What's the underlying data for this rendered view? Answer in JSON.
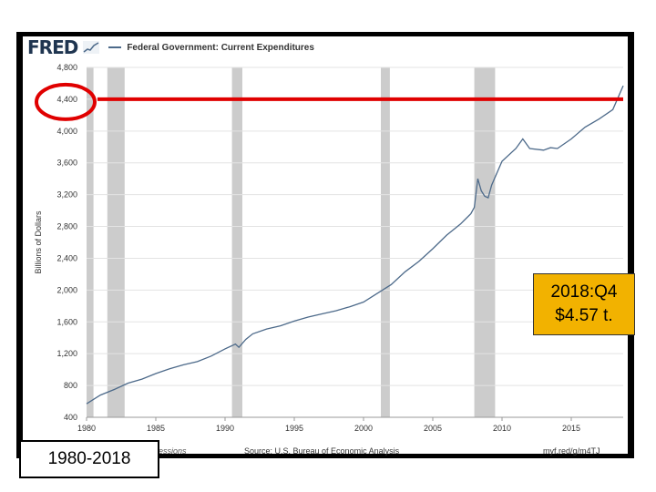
{
  "header": {
    "logo": "FRED",
    "logo_icon": "sparkline-icon",
    "series_title": "Federal Government: Current Expenditures"
  },
  "footer": {
    "recessions_label": "essions",
    "source": "Source: U.S. Bureau of Economic Analysis",
    "url": "myf.red/g/m4TJ"
  },
  "annotations": {
    "callout_line1": "2018:Q4",
    "callout_line2": "$4.57 t.",
    "range_label": "1980-2018",
    "highlight_value": 4400
  },
  "colors": {
    "series": "#4d6a8a",
    "recession": "#cccccc",
    "grid": "#e3e3e3",
    "highlight": "#e00000",
    "callout_bg": "#f2b200"
  },
  "chart_data": {
    "type": "line",
    "title": "Federal Government: Current Expenditures",
    "ylabel": "Billions of Dollars",
    "xlabel": "",
    "xlim": [
      1980,
      2018.75
    ],
    "ylim": [
      400,
      4800
    ],
    "xticks": [
      1980,
      1985,
      1990,
      1995,
      2000,
      2005,
      2010,
      2015
    ],
    "yticks": [
      400,
      800,
      1200,
      1600,
      2000,
      2400,
      2800,
      3200,
      3600,
      4000,
      4400,
      4800
    ],
    "ytick_labels": [
      "400",
      "800",
      "1,200",
      "1,600",
      "2,000",
      "2,400",
      "2,800",
      "3,200",
      "3,600",
      "4,000",
      "4,400",
      "4,800"
    ],
    "grid": true,
    "recessions": [
      [
        1980.0,
        1980.5
      ],
      [
        1981.5,
        1982.75
      ],
      [
        1990.5,
        1991.25
      ],
      [
        2001.25,
        2001.9
      ],
      [
        2008.0,
        2009.5
      ]
    ],
    "series": [
      {
        "x": [
          1980,
          1981,
          1982,
          1983,
          1984,
          1985,
          1986,
          1987,
          1988,
          1989,
          1990,
          1990.75,
          1991,
          1991.5,
          1992,
          1993,
          1994,
          1995,
          1996,
          1997,
          1998,
          1999,
          2000,
          2001,
          2002,
          2003,
          2004,
          2005,
          2006,
          2007,
          2007.75,
          2008,
          2008.25,
          2008.5,
          2008.75,
          2009,
          2009.25,
          2010,
          2011,
          2011.5,
          2012,
          2013,
          2013.5,
          2014,
          2015,
          2016,
          2017,
          2018,
          2018.75
        ],
        "values": [
          570,
          680,
          750,
          830,
          880,
          950,
          1010,
          1060,
          1100,
          1170,
          1260,
          1320,
          1280,
          1380,
          1450,
          1510,
          1550,
          1610,
          1660,
          1700,
          1740,
          1790,
          1850,
          1960,
          2070,
          2230,
          2360,
          2520,
          2690,
          2830,
          2960,
          3040,
          3400,
          3250,
          3180,
          3160,
          3320,
          3620,
          3780,
          3900,
          3780,
          3760,
          3790,
          3780,
          3900,
          4050,
          4150,
          4270,
          4570
        ]
      }
    ]
  }
}
